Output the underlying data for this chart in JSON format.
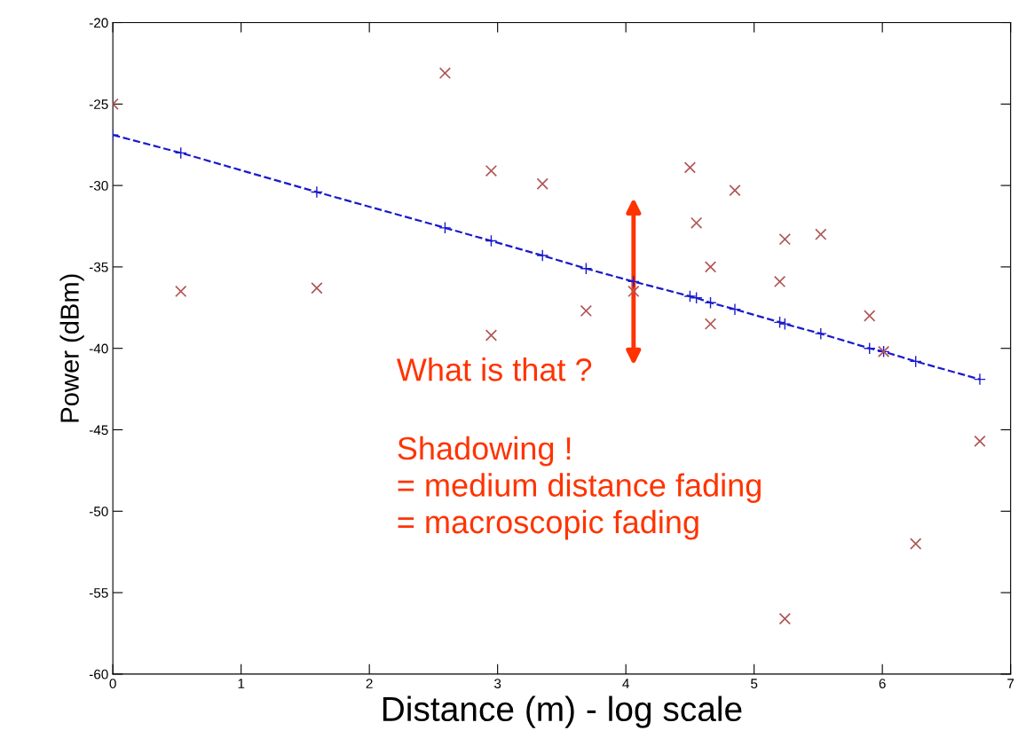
{
  "chart_data": {
    "type": "scatter",
    "xlabel": "Distance (m) - log scale",
    "ylabel": "Power (dBm)",
    "xlim": [
      0,
      7
    ],
    "xticks": [
      0,
      1,
      2,
      3,
      4,
      5,
      6,
      7
    ],
    "ylim": [
      -60,
      -20
    ],
    "yticks": [
      -60,
      -55,
      -50,
      -45,
      -40,
      -35,
      -30,
      -25,
      -20
    ],
    "grid": false,
    "series": [
      {
        "color": "#b05555",
        "marker": "cross",
        "x": [
          0,
          0.53,
          1.59,
          2.59,
          2.95,
          2.95,
          3.35,
          3.69,
          4.06,
          4.5,
          4.55,
          4.66,
          4.66,
          4.85,
          5.2,
          5.24,
          5.52,
          5.9,
          6.01,
          6.76,
          6.26,
          5.24
        ],
        "values": [
          -25,
          -36.5,
          -36.3,
          -23.1,
          -29.1,
          -39.2,
          -29.9,
          -37.7,
          -36.5,
          -28.9,
          -32.3,
          -35.0,
          -38.5,
          -30.3,
          -35.9,
          -33.3,
          -33.0,
          -38.0,
          -40.2,
          -45.7,
          -52.0,
          -56.6
        ]
      },
      {
        "type": "line",
        "color": "#1a1acc",
        "marker": "plus",
        "line_style": "dashed",
        "x": [
          0,
          0.53,
          1.59,
          2.59,
          2.95,
          3.35,
          3.69,
          4.06,
          4.5,
          4.55,
          4.66,
          4.85,
          5.2,
          5.24,
          5.52,
          5.9,
          6.01,
          6.26,
          6.76
        ],
        "values": [
          -26.9,
          -28.0,
          -30.4,
          -32.6,
          -33.4,
          -34.3,
          -35.1,
          -35.9,
          -36.8,
          -36.9,
          -37.2,
          -37.6,
          -38.4,
          -38.5,
          -39.1,
          -40.0,
          -40.2,
          -40.8,
          -41.9
        ]
      }
    ],
    "annotations": [
      {
        "text": "What is that ?",
        "x": 4.06,
        "y": -35.9
      },
      "Shadowing !\n= medium distance fading\n= macroscopic fading"
    ]
  }
}
